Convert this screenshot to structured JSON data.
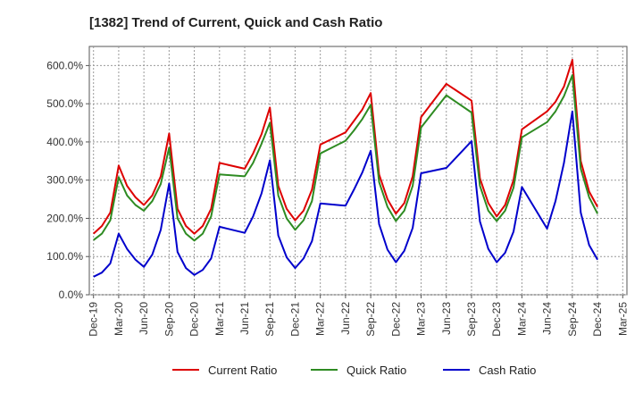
{
  "chart_data": {
    "type": "line",
    "title": "[1382]  Trend of Current, Quick and Cash Ratio",
    "xlabel": "",
    "ylabel": "",
    "ylim": [
      0,
      650
    ],
    "y_ticks": [
      0,
      100,
      200,
      300,
      400,
      500,
      600
    ],
    "y_tick_labels": [
      "0.0%",
      "100.0%",
      "200.0%",
      "300.0%",
      "400.0%",
      "500.0%",
      "600.0%"
    ],
    "x_tick_labels": [
      "Dec-19",
      "Mar-20",
      "Jun-20",
      "Sep-20",
      "Dec-20",
      "Mar-21",
      "Jun-21",
      "Sep-21",
      "Dec-21",
      "Mar-22",
      "Jun-22",
      "Sep-22",
      "Dec-22",
      "Mar-23",
      "Jun-23",
      "Sep-23",
      "Dec-23",
      "Mar-24",
      "Jun-24",
      "Sep-24",
      "Dec-24",
      "Mar-25"
    ],
    "months": [
      "Dec-19",
      "Jan-20",
      "Feb-20",
      "Mar-20",
      "Apr-20",
      "May-20",
      "Jun-20",
      "Jul-20",
      "Aug-20",
      "Sep-20",
      "Oct-20",
      "Nov-20",
      "Dec-20",
      "Jan-21",
      "Feb-21",
      "Mar-21",
      "Apr-21",
      "May-21",
      "Jun-21",
      "Jul-21",
      "Aug-21",
      "Sep-21",
      "Oct-21",
      "Nov-21",
      "Dec-21",
      "Jan-22",
      "Feb-22",
      "Mar-22",
      "Apr-22",
      "May-22",
      "Jun-22",
      "Jul-22",
      "Aug-22",
      "Sep-22",
      "Oct-22",
      "Nov-22",
      "Dec-22",
      "Jan-23",
      "Feb-23",
      "Mar-23",
      "Apr-23",
      "May-23",
      "Jun-23",
      "Jul-23",
      "Aug-23",
      "Sep-23",
      "Oct-23",
      "Nov-23",
      "Dec-23",
      "Jan-24",
      "Feb-24",
      "Mar-24",
      "Apr-24",
      "May-24",
      "Jun-24",
      "Jul-24",
      "Aug-24",
      "Sep-24",
      "Oct-24",
      "Nov-24",
      "Dec-24",
      "Jan-25",
      "Feb-25",
      "Mar-25"
    ],
    "grid": true,
    "legend_position": "bottom",
    "series": [
      {
        "name": "Current Ratio",
        "color": "#dd0000",
        "points": [
          [
            "Dec-19",
            160
          ],
          [
            "Jan-20",
            180
          ],
          [
            "Feb-20",
            215
          ],
          [
            "Mar-20",
            338
          ],
          [
            "Apr-20",
            285
          ],
          [
            "May-20",
            255
          ],
          [
            "Jun-20",
            235
          ],
          [
            "Jul-20",
            260
          ],
          [
            "Aug-20",
            310
          ],
          [
            "Sep-20",
            422
          ],
          [
            "Oct-20",
            225
          ],
          [
            "Nov-20",
            180
          ],
          [
            "Dec-20",
            160
          ],
          [
            "Jan-21",
            180
          ],
          [
            "Feb-21",
            225
          ],
          [
            "Mar-21",
            345
          ],
          [
            "Jun-21",
            330
          ],
          [
            "Jul-21",
            370
          ],
          [
            "Aug-21",
            420
          ],
          [
            "Sep-21",
            490
          ],
          [
            "Oct-21",
            285
          ],
          [
            "Nov-21",
            225
          ],
          [
            "Dec-21",
            195
          ],
          [
            "Jan-22",
            220
          ],
          [
            "Feb-22",
            275
          ],
          [
            "Mar-22",
            393
          ],
          [
            "Jun-22",
            425
          ],
          [
            "Jul-22",
            455
          ],
          [
            "Aug-22",
            485
          ],
          [
            "Sep-22",
            528
          ],
          [
            "Oct-22",
            315
          ],
          [
            "Nov-22",
            250
          ],
          [
            "Dec-22",
            212
          ],
          [
            "Jan-23",
            240
          ],
          [
            "Feb-23",
            310
          ],
          [
            "Mar-23",
            465
          ],
          [
            "Jun-23",
            552
          ],
          [
            "Sep-23",
            508
          ],
          [
            "Oct-23",
            305
          ],
          [
            "Nov-23",
            240
          ],
          [
            "Dec-23",
            205
          ],
          [
            "Jan-24",
            235
          ],
          [
            "Feb-24",
            300
          ],
          [
            "Mar-24",
            433
          ],
          [
            "Jun-24",
            480
          ],
          [
            "Jul-24",
            505
          ],
          [
            "Aug-24",
            545
          ],
          [
            "Sep-24",
            615
          ],
          [
            "Oct-24",
            350
          ],
          [
            "Nov-24",
            270
          ],
          [
            "Dec-24",
            230
          ]
        ]
      },
      {
        "name": "Quick Ratio",
        "color": "#2e8b22",
        "points": [
          [
            "Dec-19",
            143
          ],
          [
            "Jan-20",
            160
          ],
          [
            "Feb-20",
            195
          ],
          [
            "Mar-20",
            308
          ],
          [
            "Apr-20",
            260
          ],
          [
            "May-20",
            235
          ],
          [
            "Jun-20",
            220
          ],
          [
            "Jul-20",
            245
          ],
          [
            "Aug-20",
            290
          ],
          [
            "Sep-20",
            385
          ],
          [
            "Oct-20",
            200
          ],
          [
            "Nov-20",
            160
          ],
          [
            "Dec-20",
            142
          ],
          [
            "Jan-21",
            160
          ],
          [
            "Feb-21",
            205
          ],
          [
            "Mar-21",
            315
          ],
          [
            "Jun-21",
            310
          ],
          [
            "Jul-21",
            345
          ],
          [
            "Aug-21",
            395
          ],
          [
            "Sep-21",
            450
          ],
          [
            "Oct-21",
            260
          ],
          [
            "Nov-21",
            200
          ],
          [
            "Dec-21",
            170
          ],
          [
            "Jan-22",
            195
          ],
          [
            "Feb-22",
            245
          ],
          [
            "Mar-22",
            370
          ],
          [
            "Jun-22",
            403
          ],
          [
            "Jul-22",
            430
          ],
          [
            "Aug-22",
            460
          ],
          [
            "Sep-22",
            497
          ],
          [
            "Oct-22",
            295
          ],
          [
            "Nov-22",
            230
          ],
          [
            "Dec-22",
            193
          ],
          [
            "Jan-23",
            220
          ],
          [
            "Feb-23",
            285
          ],
          [
            "Mar-23",
            438
          ],
          [
            "Jun-23",
            522
          ],
          [
            "Sep-23",
            477
          ],
          [
            "Oct-23",
            285
          ],
          [
            "Nov-23",
            220
          ],
          [
            "Dec-23",
            193
          ],
          [
            "Jan-24",
            220
          ],
          [
            "Feb-24",
            280
          ],
          [
            "Mar-24",
            412
          ],
          [
            "Jun-24",
            452
          ],
          [
            "Jul-24",
            480
          ],
          [
            "Aug-24",
            520
          ],
          [
            "Sep-24",
            575
          ],
          [
            "Oct-24",
            330
          ],
          [
            "Nov-24",
            255
          ],
          [
            "Dec-24",
            212
          ]
        ]
      },
      {
        "name": "Cash Ratio",
        "color": "#0000cc",
        "points": [
          [
            "Dec-19",
            47
          ],
          [
            "Jan-20",
            58
          ],
          [
            "Feb-20",
            82
          ],
          [
            "Mar-20",
            160
          ],
          [
            "Apr-20",
            120
          ],
          [
            "May-20",
            92
          ],
          [
            "Jun-20",
            73
          ],
          [
            "Jul-20",
            105
          ],
          [
            "Aug-20",
            170
          ],
          [
            "Sep-20",
            291
          ],
          [
            "Oct-20",
            112
          ],
          [
            "Nov-20",
            70
          ],
          [
            "Dec-20",
            52
          ],
          [
            "Jan-21",
            65
          ],
          [
            "Feb-21",
            95
          ],
          [
            "Mar-21",
            178
          ],
          [
            "Jun-21",
            162
          ],
          [
            "Jul-21",
            205
          ],
          [
            "Aug-21",
            265
          ],
          [
            "Sep-21",
            352
          ],
          [
            "Oct-21",
            155
          ],
          [
            "Nov-21",
            98
          ],
          [
            "Dec-21",
            70
          ],
          [
            "Jan-22",
            95
          ],
          [
            "Feb-22",
            140
          ],
          [
            "Mar-22",
            239
          ],
          [
            "Jun-22",
            233
          ],
          [
            "Jul-22",
            275
          ],
          [
            "Aug-22",
            320
          ],
          [
            "Sep-22",
            377
          ],
          [
            "Oct-22",
            185
          ],
          [
            "Nov-22",
            118
          ],
          [
            "Dec-22",
            85
          ],
          [
            "Jan-23",
            115
          ],
          [
            "Feb-23",
            175
          ],
          [
            "Mar-23",
            318
          ],
          [
            "Jun-23",
            332
          ],
          [
            "Sep-23",
            402
          ],
          [
            "Oct-23",
            192
          ],
          [
            "Nov-23",
            120
          ],
          [
            "Dec-23",
            85
          ],
          [
            "Jan-24",
            110
          ],
          [
            "Feb-24",
            165
          ],
          [
            "Mar-24",
            282
          ],
          [
            "Jun-24",
            173
          ],
          [
            "Jul-24",
            245
          ],
          [
            "Aug-24",
            345
          ],
          [
            "Sep-24",
            480
          ],
          [
            "Oct-24",
            215
          ],
          [
            "Nov-24",
            130
          ],
          [
            "Dec-24",
            92
          ]
        ]
      }
    ]
  }
}
